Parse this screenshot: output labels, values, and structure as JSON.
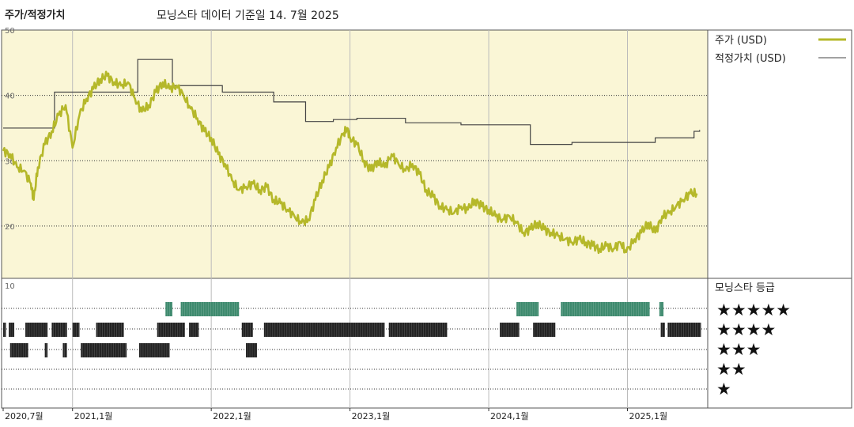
{
  "header": {
    "title": "주가/적정가치",
    "subtitle": "모닝스타 데이터 기준일 14. 7월 2025"
  },
  "colors": {
    "price": "#b5b82a",
    "fair": "#444444",
    "rating_high": "#3e8a6e",
    "rating_other": "#222222",
    "panel_bg": "#faf6d6"
  },
  "chart_data": {
    "type": "line",
    "ylim": [
      12,
      50
    ],
    "yticks": [
      "50",
      "40",
      "30",
      "20"
    ],
    "xlim": [
      2020.5,
      2025.55
    ],
    "xticks": [
      {
        "x": 2020.5,
        "label": "2020,7월"
      },
      {
        "x": 2021.0,
        "label": "2021,1월"
      },
      {
        "x": 2022.0,
        "label": "2022,1월"
      },
      {
        "x": 2023.0,
        "label": "2023,1월"
      },
      {
        "x": 2024.0,
        "label": "2024,1월"
      },
      {
        "x": 2025.0,
        "label": "2025,1월"
      }
    ],
    "legend": {
      "price": "주가 (USD)",
      "fair": "적정가치 (USD)"
    },
    "series": [
      {
        "name": "주가 (USD)",
        "points": [
          [
            2020.5,
            31.5
          ],
          [
            2020.55,
            31.0
          ],
          [
            2020.6,
            29.0
          ],
          [
            2020.65,
            28.5
          ],
          [
            2020.7,
            26.5
          ],
          [
            2020.72,
            24.0
          ],
          [
            2020.75,
            29.0
          ],
          [
            2020.8,
            32.5
          ],
          [
            2020.85,
            34.5
          ],
          [
            2020.9,
            37.0
          ],
          [
            2020.95,
            38.5
          ],
          [
            2021.0,
            32.0
          ],
          [
            2021.05,
            37.0
          ],
          [
            2021.1,
            39.5
          ],
          [
            2021.15,
            41.0
          ],
          [
            2021.2,
            42.5
          ],
          [
            2021.25,
            43.0
          ],
          [
            2021.3,
            42.0
          ],
          [
            2021.35,
            41.5
          ],
          [
            2021.4,
            42.0
          ],
          [
            2021.45,
            39.5
          ],
          [
            2021.5,
            37.5
          ],
          [
            2021.55,
            38.5
          ],
          [
            2021.6,
            40.5
          ],
          [
            2021.65,
            42.0
          ],
          [
            2021.7,
            41.0
          ],
          [
            2021.75,
            41.5
          ],
          [
            2021.8,
            40.0
          ],
          [
            2021.85,
            38.0
          ],
          [
            2021.9,
            36.5
          ],
          [
            2021.95,
            34.5
          ],
          [
            2022.0,
            33.5
          ],
          [
            2022.05,
            31.0
          ],
          [
            2022.1,
            29.5
          ],
          [
            2022.15,
            27.0
          ],
          [
            2022.2,
            25.5
          ],
          [
            2022.25,
            26.0
          ],
          [
            2022.3,
            26.5
          ],
          [
            2022.35,
            25.5
          ],
          [
            2022.4,
            26.0
          ],
          [
            2022.45,
            24.0
          ],
          [
            2022.5,
            23.5
          ],
          [
            2022.55,
            22.5
          ],
          [
            2022.6,
            21.5
          ],
          [
            2022.65,
            20.5
          ],
          [
            2022.7,
            21.0
          ],
          [
            2022.75,
            24.0
          ],
          [
            2022.8,
            27.0
          ],
          [
            2022.85,
            29.0
          ],
          [
            2022.9,
            32.0
          ],
          [
            2022.95,
            34.0
          ],
          [
            2022.98,
            35.0
          ],
          [
            2023.0,
            33.5
          ],
          [
            2023.05,
            32.5
          ],
          [
            2023.1,
            30.0
          ],
          [
            2023.15,
            28.5
          ],
          [
            2023.2,
            30.0
          ],
          [
            2023.25,
            29.0
          ],
          [
            2023.3,
            31.0
          ],
          [
            2023.35,
            29.5
          ],
          [
            2023.4,
            28.5
          ],
          [
            2023.45,
            29.5
          ],
          [
            2023.5,
            28.0
          ],
          [
            2023.55,
            25.5
          ],
          [
            2023.6,
            24.5
          ],
          [
            2023.65,
            23.0
          ],
          [
            2023.7,
            22.5
          ],
          [
            2023.75,
            22.0
          ],
          [
            2023.8,
            23.0
          ],
          [
            2023.85,
            22.5
          ],
          [
            2023.9,
            24.0
          ],
          [
            2023.95,
            23.0
          ],
          [
            2024.0,
            22.5
          ],
          [
            2024.05,
            21.5
          ],
          [
            2024.1,
            21.0
          ],
          [
            2024.15,
            21.5
          ],
          [
            2024.2,
            20.5
          ],
          [
            2024.25,
            19.0
          ],
          [
            2024.3,
            19.5
          ],
          [
            2024.35,
            20.5
          ],
          [
            2024.4,
            19.5
          ],
          [
            2024.45,
            19.0
          ],
          [
            2024.5,
            18.5
          ],
          [
            2024.55,
            18.0
          ],
          [
            2024.6,
            17.5
          ],
          [
            2024.65,
            18.0
          ],
          [
            2024.7,
            17.5
          ],
          [
            2024.75,
            17.0
          ],
          [
            2024.8,
            16.5
          ],
          [
            2024.85,
            17.0
          ],
          [
            2024.9,
            16.5
          ],
          [
            2024.95,
            17.5
          ],
          [
            2024.99,
            16.0
          ],
          [
            2025.05,
            18.0
          ],
          [
            2025.1,
            19.0
          ],
          [
            2025.15,
            20.5
          ],
          [
            2025.2,
            19.0
          ],
          [
            2025.25,
            21.5
          ],
          [
            2025.3,
            22.0
          ],
          [
            2025.35,
            23.0
          ],
          [
            2025.4,
            24.0
          ],
          [
            2025.45,
            25.0
          ],
          [
            2025.5,
            25.0
          ]
        ]
      },
      {
        "name": "적정가치 (USD)",
        "steps": [
          [
            2020.5,
            35.0
          ],
          [
            2020.87,
            40.5
          ],
          [
            2021.47,
            45.5
          ],
          [
            2021.72,
            41.5
          ],
          [
            2022.08,
            40.5
          ],
          [
            2022.45,
            39.0
          ],
          [
            2022.68,
            36.0
          ],
          [
            2022.88,
            36.3
          ],
          [
            2023.05,
            36.5
          ],
          [
            2023.4,
            35.8
          ],
          [
            2023.8,
            35.5
          ],
          [
            2024.3,
            32.5
          ],
          [
            2024.6,
            32.8
          ],
          [
            2025.2,
            33.5
          ],
          [
            2025.48,
            34.5
          ],
          [
            2025.52,
            34.7
          ]
        ]
      }
    ]
  },
  "rating": {
    "title": "모닝스타 등급",
    "scale_top": "10",
    "levels": [
      {
        "stars": 5,
        "label": "★★★★★",
        "segments": [
          [
            2021.67,
            2021.72
          ],
          [
            2021.78,
            2022.2
          ],
          [
            2024.2,
            2024.36
          ],
          [
            2024.52,
            2025.16
          ],
          [
            2025.23,
            2025.26
          ]
        ]
      },
      {
        "stars": 4,
        "label": "★★★★",
        "segments": [
          [
            2020.5,
            2020.52
          ],
          [
            2020.54,
            2020.58
          ],
          [
            2020.66,
            2020.82
          ],
          [
            2020.85,
            2020.96
          ],
          [
            2021.0,
            2021.05
          ],
          [
            2021.17,
            2021.37
          ],
          [
            2021.61,
            2021.81
          ],
          [
            2021.84,
            2021.91
          ],
          [
            2022.22,
            2022.3
          ],
          [
            2022.38,
            2023.25
          ],
          [
            2023.28,
            2023.7
          ],
          [
            2024.08,
            2024.22
          ],
          [
            2024.32,
            2024.48
          ],
          [
            2025.24,
            2025.27
          ],
          [
            2025.29,
            2025.53
          ]
        ]
      },
      {
        "stars": 3,
        "label": "★★★",
        "segments": [
          [
            2020.55,
            2020.68
          ],
          [
            2020.8,
            2020.82
          ],
          [
            2020.93,
            2020.96
          ],
          [
            2021.06,
            2021.39
          ],
          [
            2021.48,
            2021.7
          ],
          [
            2022.25,
            2022.33
          ]
        ]
      },
      {
        "stars": 2,
        "label": "★★",
        "segments": []
      },
      {
        "stars": 1,
        "label": "★",
        "segments": []
      }
    ]
  }
}
